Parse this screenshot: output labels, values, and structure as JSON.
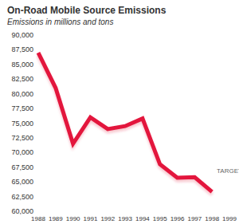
{
  "chart_data": {
    "type": "line",
    "title": "On-Road Mobile Source Emissions",
    "subtitle": "Emissions in millions and tons",
    "categories": [
      "1988",
      "1989",
      "1990",
      "1991",
      "1992",
      "1993",
      "1994",
      "1995",
      "1996",
      "1997",
      "1998",
      "1999"
    ],
    "values": [
      87000,
      81000,
      71500,
      76000,
      74000,
      74500,
      75800,
      68000,
      65700,
      65800,
      63300,
      null
    ],
    "color": "#e3173e",
    "ylim": [
      60000,
      90000
    ],
    "yticks": [
      {
        "value": 60000,
        "label": "60,000"
      },
      {
        "value": 62500,
        "label": "62,500"
      },
      {
        "value": 65000,
        "label": "65,000"
      },
      {
        "value": 67500,
        "label": "67,500"
      },
      {
        "value": 70000,
        "label": "70,000"
      },
      {
        "value": 72500,
        "label": "72,500"
      },
      {
        "value": 75000,
        "label": "75,000"
      },
      {
        "value": 77500,
        "label": "77,500"
      },
      {
        "value": 80000,
        "label": "80,000"
      },
      {
        "value": 82500,
        "label": "82,500"
      },
      {
        "value": 85000,
        "label": "85,000"
      },
      {
        "value": 87500,
        "label": "87,500"
      },
      {
        "value": 90000,
        "label": "90,000"
      }
    ],
    "grid": false,
    "annotations": [
      {
        "text": "TARGET",
        "x": "1999",
        "y": 64800,
        "marker": "circle"
      }
    ]
  }
}
